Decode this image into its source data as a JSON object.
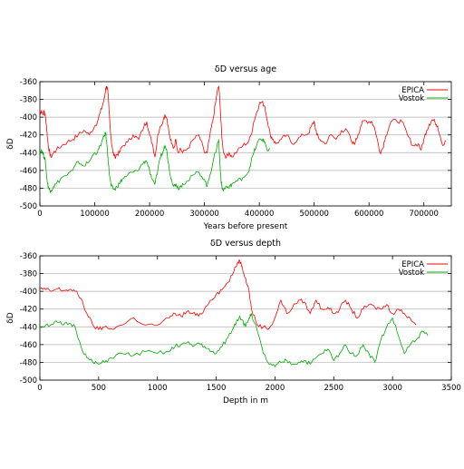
{
  "chart_data": [
    {
      "type": "line",
      "title": "δD versus age",
      "xlabel": "Years before present",
      "ylabel": "δD",
      "xlim": [
        0,
        750000
      ],
      "ylim": [
        -500,
        -360
      ],
      "xticks": [
        0,
        100000,
        200000,
        300000,
        400000,
        500000,
        600000,
        700000
      ],
      "yticks": [
        -500,
        -480,
        -460,
        -440,
        -420,
        -400,
        -380,
        -360
      ],
      "grid": "horizontal",
      "legend_position": "top-right",
      "series": [
        {
          "name": "EPICA",
          "color": "#ff0000",
          "x": [
            0,
            3000,
            6000,
            8000,
            10000,
            12000,
            14000,
            16000,
            18000,
            20000,
            25000,
            30000,
            40000,
            50000,
            60000,
            70000,
            80000,
            90000,
            100000,
            105000,
            110000,
            115000,
            118000,
            120000,
            122000,
            124000,
            126000,
            128000,
            130000,
            133000,
            137000,
            140000,
            145000,
            150000,
            160000,
            170000,
            180000,
            190000,
            195000,
            200000,
            205000,
            210000,
            215000,
            220000,
            225000,
            228000,
            232000,
            236000,
            240000,
            244000,
            248000,
            252000,
            256000,
            260000,
            270000,
            280000,
            290000,
            300000,
            305000,
            310000,
            315000,
            320000,
            323000,
            326000,
            328000,
            330000,
            332000,
            335000,
            340000,
            345000,
            350000,
            360000,
            370000,
            380000,
            385000,
            390000,
            395000,
            400000,
            405000,
            410000,
            415000,
            420000,
            425000,
            430000,
            440000,
            450000,
            460000,
            470000,
            480000,
            490000,
            495000,
            500000,
            505000,
            510000,
            520000,
            530000,
            540000,
            550000,
            560000,
            570000,
            575000,
            580000,
            585000,
            590000,
            600000,
            605000,
            610000,
            615000,
            620000,
            625000,
            630000,
            640000,
            650000,
            660000,
            670000,
            680000,
            690000,
            695000,
            700000,
            705000,
            710000,
            715000,
            720000,
            725000,
            730000,
            735000,
            740000
          ],
          "values": [
            -398,
            -392,
            -397,
            -393,
            -400,
            -410,
            -425,
            -435,
            -440,
            -445,
            -440,
            -437,
            -432,
            -428,
            -425,
            -420,
            -415,
            -420,
            -410,
            -405,
            -395,
            -385,
            -378,
            -368,
            -365,
            -372,
            -392,
            -410,
            -425,
            -440,
            -445,
            -442,
            -440,
            -433,
            -428,
            -420,
            -425,
            -410,
            -405,
            -420,
            -430,
            -445,
            -420,
            -410,
            -403,
            -397,
            -402,
            -420,
            -430,
            -435,
            -425,
            -440,
            -435,
            -440,
            -435,
            -425,
            -420,
            -440,
            -440,
            -420,
            -405,
            -385,
            -372,
            -365,
            -380,
            -405,
            -425,
            -440,
            -445,
            -440,
            -445,
            -438,
            -432,
            -428,
            -420,
            -405,
            -395,
            -385,
            -383,
            -388,
            -405,
            -420,
            -425,
            -430,
            -425,
            -420,
            -430,
            -425,
            -420,
            -418,
            -410,
            -405,
            -420,
            -425,
            -430,
            -420,
            -425,
            -415,
            -415,
            -430,
            -428,
            -420,
            -410,
            -404,
            -405,
            -405,
            -412,
            -425,
            -440,
            -435,
            -422,
            -405,
            -404,
            -405,
            -420,
            -432,
            -430,
            -437,
            -425,
            -415,
            -408,
            -403,
            -405,
            -410,
            -422,
            -432,
            -427
          ]
        },
        {
          "name": "Vostok",
          "color": "#00aa00",
          "x": [
            0,
            3000,
            6000,
            8000,
            10000,
            12000,
            14000,
            16000,
            18000,
            20000,
            25000,
            30000,
            40000,
            50000,
            60000,
            70000,
            80000,
            90000,
            100000,
            105000,
            110000,
            115000,
            118000,
            120000,
            122000,
            124000,
            126000,
            128000,
            130000,
            133000,
            137000,
            140000,
            145000,
            150000,
            160000,
            170000,
            180000,
            190000,
            195000,
            200000,
            205000,
            210000,
            215000,
            220000,
            225000,
            228000,
            232000,
            236000,
            240000,
            244000,
            248000,
            252000,
            256000,
            260000,
            270000,
            280000,
            290000,
            300000,
            305000,
            310000,
            315000,
            320000,
            323000,
            326000,
            328000,
            330000,
            332000,
            335000,
            340000,
            345000,
            350000,
            360000,
            370000,
            380000,
            385000,
            390000,
            395000,
            400000,
            405000,
            410000,
            415000,
            420000
          ],
          "values": [
            -440,
            -437,
            -442,
            -445,
            -450,
            -465,
            -475,
            -480,
            -482,
            -483,
            -478,
            -475,
            -468,
            -465,
            -460,
            -450,
            -455,
            -450,
            -440,
            -440,
            -432,
            -425,
            -420,
            -418,
            -430,
            -445,
            -460,
            -470,
            -478,
            -480,
            -482,
            -478,
            -475,
            -470,
            -465,
            -462,
            -460,
            -450,
            -450,
            -460,
            -470,
            -475,
            -460,
            -445,
            -438,
            -432,
            -440,
            -460,
            -470,
            -478,
            -475,
            -480,
            -478,
            -475,
            -472,
            -465,
            -462,
            -470,
            -478,
            -465,
            -452,
            -440,
            -432,
            -425,
            -450,
            -470,
            -480,
            -482,
            -478,
            -480,
            -475,
            -472,
            -468,
            -462,
            -450,
            -440,
            -432,
            -425,
            -425,
            -428,
            -438,
            -435
          ]
        }
      ]
    },
    {
      "type": "line",
      "title": "δD versus depth",
      "xlabel": "Depth in m",
      "ylabel": "δD",
      "xlim": [
        0,
        3500
      ],
      "ylim": [
        -500,
        -360
      ],
      "xticks": [
        0,
        500,
        1000,
        1500,
        2000,
        2500,
        3000,
        3500
      ],
      "yticks": [
        -500,
        -480,
        -460,
        -440,
        -420,
        -400,
        -380,
        -360
      ],
      "grid": "horizontal",
      "legend_position": "top-right",
      "series": [
        {
          "name": "EPICA",
          "color": "#ff0000",
          "x": [
            0,
            50,
            100,
            150,
            200,
            250,
            300,
            350,
            400,
            450,
            500,
            550,
            600,
            700,
            800,
            900,
            1000,
            1100,
            1150,
            1200,
            1250,
            1300,
            1350,
            1400,
            1450,
            1500,
            1550,
            1600,
            1650,
            1680,
            1700,
            1720,
            1750,
            1780,
            1800,
            1850,
            1900,
            1950,
            2000,
            2050,
            2100,
            2150,
            2200,
            2250,
            2300,
            2350,
            2400,
            2450,
            2500,
            2550,
            2600,
            2650,
            2700,
            2750,
            2800,
            2850,
            2900,
            2950,
            3000,
            3050,
            3100,
            3150,
            3200
          ],
          "values": [
            -397,
            -398,
            -400,
            -397,
            -399,
            -398,
            -400,
            -408,
            -425,
            -438,
            -443,
            -440,
            -442,
            -438,
            -430,
            -438,
            -438,
            -430,
            -425,
            -428,
            -423,
            -425,
            -428,
            -420,
            -410,
            -403,
            -398,
            -390,
            -378,
            -368,
            -365,
            -372,
            -385,
            -400,
            -420,
            -438,
            -440,
            -442,
            -430,
            -410,
            -425,
            -418,
            -410,
            -412,
            -425,
            -410,
            -420,
            -418,
            -425,
            -420,
            -410,
            -420,
            -430,
            -420,
            -415,
            -418,
            -420,
            -415,
            -425,
            -420,
            -425,
            -430,
            -438
          ]
        },
        {
          "name": "Vostok",
          "color": "#00aa00",
          "x": [
            0,
            50,
            100,
            150,
            200,
            250,
            300,
            350,
            400,
            450,
            500,
            550,
            600,
            700,
            800,
            900,
            1000,
            1100,
            1150,
            1200,
            1250,
            1300,
            1350,
            1400,
            1450,
            1500,
            1550,
            1600,
            1650,
            1680,
            1700,
            1720,
            1750,
            1780,
            1800,
            1850,
            1900,
            1950,
            2000,
            2050,
            2100,
            2150,
            2200,
            2250,
            2300,
            2350,
            2400,
            2450,
            2500,
            2550,
            2600,
            2650,
            2700,
            2750,
            2800,
            2850,
            2900,
            2950,
            3000,
            3050,
            3100,
            3150,
            3200,
            3250,
            3300
          ],
          "values": [
            -440,
            -438,
            -437,
            -435,
            -438,
            -436,
            -440,
            -462,
            -475,
            -480,
            -482,
            -480,
            -475,
            -470,
            -472,
            -468,
            -470,
            -468,
            -462,
            -460,
            -458,
            -462,
            -458,
            -462,
            -468,
            -470,
            -462,
            -452,
            -440,
            -432,
            -428,
            -432,
            -440,
            -430,
            -425,
            -445,
            -470,
            -482,
            -485,
            -480,
            -478,
            -482,
            -480,
            -478,
            -482,
            -475,
            -470,
            -465,
            -478,
            -470,
            -460,
            -470,
            -472,
            -460,
            -470,
            -480,
            -455,
            -440,
            -430,
            -450,
            -470,
            -460,
            -455,
            -445,
            -450
          ]
        }
      ]
    }
  ]
}
